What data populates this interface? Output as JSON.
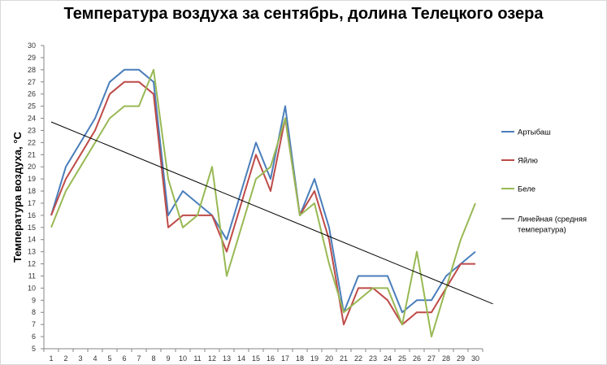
{
  "chart_data": {
    "type": "line",
    "title": "Температура воздуха за сентябрь, долина Телецкого озера",
    "xlabel": "",
    "ylabel": "Температура воздуха, °С",
    "categories": [
      1,
      2,
      3,
      4,
      5,
      6,
      7,
      8,
      9,
      10,
      11,
      12,
      13,
      14,
      15,
      16,
      17,
      18,
      19,
      20,
      21,
      22,
      23,
      24,
      25,
      26,
      27,
      28,
      29,
      30
    ],
    "ylim": [
      5,
      30
    ],
    "y_ticks": [
      5,
      6,
      7,
      8,
      9,
      10,
      11,
      12,
      13,
      14,
      15,
      16,
      17,
      18,
      19,
      20,
      21,
      22,
      23,
      24,
      25,
      26,
      27,
      28,
      29,
      30
    ],
    "grid": false,
    "legend_position": "right",
    "series": [
      {
        "name": "Артыбаш",
        "color": "#4a7ebb",
        "values": [
          16,
          20,
          22,
          24,
          27,
          28,
          28,
          27,
          16,
          18,
          17,
          16,
          14,
          18,
          22,
          19,
          25,
          16,
          19,
          15,
          8,
          11,
          11,
          11,
          8,
          9,
          9,
          11,
          12,
          13
        ]
      },
      {
        "name": "Яйлю",
        "color": "#be4b48",
        "values": [
          16,
          19,
          21,
          23,
          26,
          27,
          27,
          26,
          15,
          16,
          16,
          16,
          13,
          17,
          21,
          18,
          24,
          16,
          18,
          14,
          7,
          10,
          10,
          9,
          7,
          8,
          8,
          10,
          12,
          12
        ]
      },
      {
        "name": "Беле",
        "color": "#98b954",
        "values": [
          15,
          18,
          20,
          22,
          24,
          25,
          25,
          28,
          19,
          15,
          16,
          20,
          11,
          15,
          19,
          20,
          24,
          16,
          17,
          12,
          8,
          9,
          10,
          10,
          7,
          13,
          6,
          10,
          14,
          17
        ]
      }
    ],
    "trendline": {
      "name": "Линейная (средняя температура)",
      "label_lines": [
        "Линейная (средняя",
        "температура)"
      ],
      "color": "#000000",
      "x_start": 1,
      "y_start": 23.7,
      "x_end": 31.2,
      "y_end": 8.7
    }
  }
}
